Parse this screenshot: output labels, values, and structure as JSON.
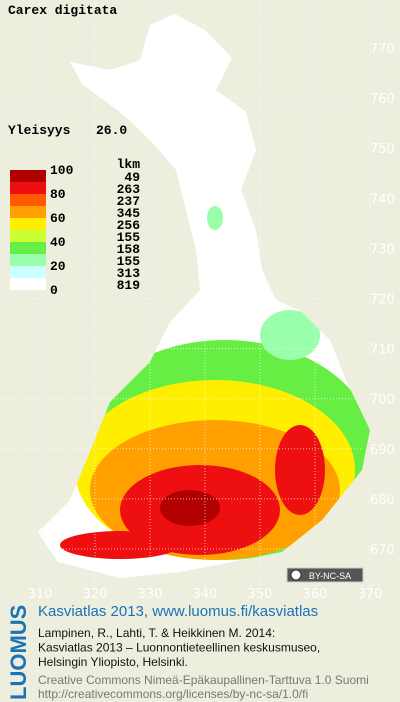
{
  "title": "Carex digitata",
  "frequency": {
    "label": "Yleisyys",
    "value": "26.0"
  },
  "legend": {
    "scale_labels": [
      100,
      80,
      60,
      40,
      20,
      0
    ],
    "count_header": "lkm",
    "classes": [
      {
        "color": "#b00000",
        "count": 49
      },
      {
        "color": "#ee1010",
        "count": 263
      },
      {
        "color": "#ff5a00",
        "count": 237
      },
      {
        "color": "#ffa000",
        "count": 345
      },
      {
        "color": "#ffee00",
        "count": 256
      },
      {
        "color": "#ccff33",
        "count": 155
      },
      {
        "color": "#66ee44",
        "count": 158
      },
      {
        "color": "#99ffaa",
        "count": 155
      },
      {
        "color": "#ccffff",
        "count": 313
      },
      {
        "color": "#ffffff",
        "count": 819
      }
    ]
  },
  "grid": {
    "y_labels": [
      770,
      760,
      750,
      740,
      730,
      720,
      710,
      700,
      690,
      680,
      670
    ],
    "x_labels": [
      310,
      320,
      330,
      340,
      350,
      360,
      370
    ]
  },
  "license_badge": "BY-NC-SA",
  "footer": {
    "logo": "LUOMUS",
    "headline": "Kasviatlas 2013, www.luomus.fi/kasviatlas",
    "citation": [
      "Lampinen, R., Lahti, T. & Heikkinen M. 2014:",
      "Kasviatlas 2013 – Luonnontieteellinen keskusmuseo,",
      "Helsingin Yliopisto, Helsinki."
    ],
    "license": [
      "Creative Commons Nimeä-Epäkaupallinen-Tarttuva 1.0 Suomi",
      "http://creativecommons.org/licenses/by-nc-sa/1.0/fi"
    ]
  }
}
